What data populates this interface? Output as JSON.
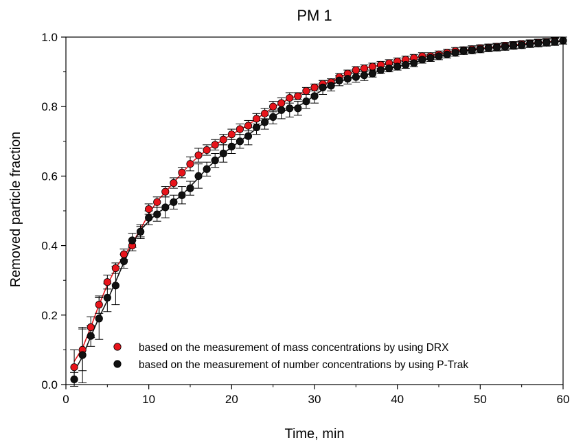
{
  "chart_data": {
    "type": "scatter",
    "title": "PM 1",
    "xlabel": "Time, min",
    "ylabel": "Removed particle fraction",
    "xlim": [
      0,
      60
    ],
    "ylim": [
      0.0,
      1.0
    ],
    "xticks": [
      "0",
      "10",
      "20",
      "30",
      "40",
      "50",
      "60"
    ],
    "yticks": [
      "0.0",
      "0.2",
      "0.4",
      "0.6",
      "0.8",
      "1.0"
    ],
    "grid": false,
    "legend_position": "lower-right",
    "series": [
      {
        "name": "based on the measurement of mass concentrations by using DRX",
        "color": "#e8141b",
        "x": [
          1,
          2,
          3,
          4,
          5,
          6,
          7,
          8,
          9,
          10,
          11,
          12,
          13,
          14,
          15,
          16,
          17,
          18,
          19,
          20,
          21,
          22,
          23,
          24,
          25,
          26,
          27,
          28,
          29,
          30,
          31,
          32,
          33,
          34,
          35,
          36,
          37,
          38,
          39,
          40,
          41,
          42,
          43,
          44,
          45,
          46,
          47,
          48,
          49,
          50,
          51,
          52,
          53,
          54,
          55,
          56,
          57,
          58,
          59,
          60
        ],
        "y": [
          0.05,
          0.1,
          0.165,
          0.23,
          0.295,
          0.335,
          0.375,
          0.4,
          0.44,
          0.505,
          0.525,
          0.555,
          0.58,
          0.61,
          0.635,
          0.66,
          0.675,
          0.69,
          0.705,
          0.72,
          0.735,
          0.745,
          0.765,
          0.78,
          0.8,
          0.81,
          0.825,
          0.83,
          0.845,
          0.855,
          0.865,
          0.87,
          0.885,
          0.895,
          0.905,
          0.91,
          0.915,
          0.92,
          0.925,
          0.93,
          0.935,
          0.94,
          0.945,
          0.945,
          0.95,
          0.955,
          0.96,
          0.962,
          0.965,
          0.968,
          0.97,
          0.972,
          0.975,
          0.977,
          0.98,
          0.982,
          0.984,
          0.986,
          0.988,
          0.99
        ],
        "error": [
          0.05,
          0.06,
          0.03,
          0.025,
          0.02,
          0.015,
          0.015,
          0.015,
          0.015,
          0.015,
          0.015,
          0.015,
          0.015,
          0.015,
          0.02,
          0.02,
          0.015,
          0.015,
          0.015,
          0.015,
          0.015,
          0.015,
          0.015,
          0.015,
          0.015,
          0.015,
          0.015,
          0.01,
          0.01,
          0.01,
          0.01,
          0.01,
          0.01,
          0.01,
          0.01,
          0.01,
          0.01,
          0.01,
          0.01,
          0.01,
          0.01,
          0.01,
          0.01,
          0.01,
          0.01,
          0.01,
          0.01,
          0.01,
          0.01,
          0.01,
          0.01,
          0.01,
          0.01,
          0.01,
          0.01,
          0.01,
          0.01,
          0.01,
          0.01,
          0.01
        ]
      },
      {
        "name": "based on the measurement of number concentrations by using P-Trak",
        "color": "#111111",
        "x": [
          1,
          2,
          3,
          4,
          5,
          6,
          7,
          8,
          9,
          10,
          11,
          12,
          13,
          14,
          15,
          16,
          17,
          18,
          19,
          20,
          21,
          22,
          23,
          24,
          25,
          26,
          27,
          28,
          29,
          30,
          31,
          32,
          33,
          34,
          35,
          36,
          37,
          38,
          39,
          40,
          41,
          42,
          43,
          44,
          45,
          46,
          47,
          48,
          49,
          50,
          51,
          52,
          53,
          54,
          55,
          56,
          57,
          58,
          59,
          60
        ],
        "y": [
          0.015,
          0.085,
          0.14,
          0.19,
          0.25,
          0.285,
          0.355,
          0.415,
          0.44,
          0.48,
          0.49,
          0.51,
          0.525,
          0.545,
          0.565,
          0.6,
          0.62,
          0.645,
          0.665,
          0.685,
          0.7,
          0.715,
          0.74,
          0.755,
          0.77,
          0.79,
          0.795,
          0.795,
          0.815,
          0.83,
          0.855,
          0.86,
          0.875,
          0.88,
          0.885,
          0.89,
          0.895,
          0.905,
          0.91,
          0.915,
          0.92,
          0.925,
          0.935,
          0.94,
          0.945,
          0.95,
          0.955,
          0.96,
          0.962,
          0.965,
          0.968,
          0.97,
          0.972,
          0.975,
          0.977,
          0.98,
          0.982,
          0.984,
          0.986,
          0.99
        ],
        "error": [
          0.02,
          0.08,
          0.03,
          0.06,
          0.04,
          0.055,
          0.02,
          0.02,
          0.02,
          0.02,
          0.02,
          0.03,
          0.02,
          0.025,
          0.02,
          0.035,
          0.02,
          0.02,
          0.025,
          0.02,
          0.02,
          0.025,
          0.02,
          0.02,
          0.02,
          0.025,
          0.025,
          0.02,
          0.02,
          0.02,
          0.02,
          0.015,
          0.015,
          0.015,
          0.015,
          0.015,
          0.01,
          0.01,
          0.01,
          0.01,
          0.01,
          0.01,
          0.01,
          0.01,
          0.01,
          0.01,
          0.01,
          0.01,
          0.01,
          0.01,
          0.01,
          0.01,
          0.01,
          0.01,
          0.01,
          0.01,
          0.01,
          0.01,
          0.01,
          0.01
        ]
      }
    ]
  }
}
